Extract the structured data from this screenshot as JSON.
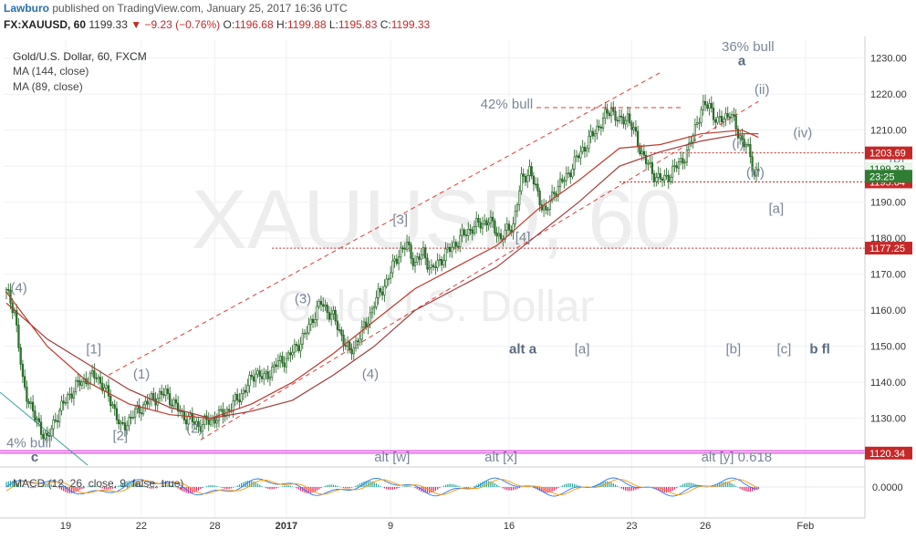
{
  "header": {
    "author": "Lawburo",
    "published_text": "published on TradingView.com, January 25, 2017 16:36 UTC",
    "symbol": "FX:XAUUSD, 60",
    "last": "1199.33",
    "change": "▼ −9.23 (−0.76%)",
    "open_label": "O:",
    "open": "1196.68",
    "high_label": "H:",
    "high": "1199.88",
    "low_label": "L:",
    "low": "1195.83",
    "close_label": "C:",
    "close": "1199.33"
  },
  "legend": {
    "title": "Gold/U.S. Dollar, 60, FXCM",
    "ma1": "MA (144, close)",
    "ma2": "MA (89, close)"
  },
  "watermark": {
    "line1": "XAUUSD, 60",
    "line2": "Gold/U.S. Dollar"
  },
  "macd": {
    "label": "MACD (12, 26, close, 9, false, true)",
    "axis_tick": "0.0000"
  },
  "colors": {
    "candle": "#2a7a2a",
    "ma_144": "#a33a3a",
    "ma_89": "#c0392b",
    "channel": "#e53935",
    "support_line": "#c62828",
    "magenta_level": "#d81bd8",
    "annotation": "#7a8699",
    "green_diagonal": "#3b9e9e",
    "macd_line": "#2979ff",
    "signal_line": "#ff9800",
    "hist_positive": "#26a69a",
    "hist_negative": "#e91e63"
  },
  "chart_data": {
    "type": "candlestick",
    "x_ticks": [
      "19",
      "22",
      "28",
      "2017",
      "9",
      "16",
      "23",
      "26",
      "Feb"
    ],
    "y_ticks": [
      1120,
      1130,
      1140,
      1150,
      1160,
      1170,
      1180,
      1190,
      1200,
      1210,
      1220,
      1230
    ],
    "ylim": [
      1117,
      1235
    ],
    "close_path": [
      [
        0,
        1165
      ],
      [
        4,
        1160
      ],
      [
        8,
        1140
      ],
      [
        14,
        1130
      ],
      [
        20,
        1124
      ],
      [
        24,
        1130
      ],
      [
        30,
        1136
      ],
      [
        36,
        1140
      ],
      [
        44,
        1142
      ],
      [
        52,
        1134
      ],
      [
        56,
        1127
      ],
      [
        62,
        1131
      ],
      [
        70,
        1135
      ],
      [
        78,
        1137
      ],
      [
        86,
        1131
      ],
      [
        94,
        1128
      ],
      [
        102,
        1130
      ],
      [
        108,
        1132
      ],
      [
        114,
        1136
      ],
      [
        118,
        1139
      ],
      [
        122,
        1143
      ],
      [
        126,
        1141
      ],
      [
        132,
        1145
      ],
      [
        138,
        1147
      ],
      [
        142,
        1150
      ],
      [
        146,
        1153
      ],
      [
        150,
        1158
      ],
      [
        154,
        1162
      ],
      [
        160,
        1158
      ],
      [
        164,
        1153
      ],
      [
        168,
        1148
      ],
      [
        172,
        1152
      ],
      [
        176,
        1156
      ],
      [
        180,
        1162
      ],
      [
        186,
        1168
      ],
      [
        192,
        1176
      ],
      [
        196,
        1178
      ],
      [
        200,
        1173
      ],
      [
        204,
        1176
      ],
      [
        208,
        1171
      ],
      [
        214,
        1175
      ],
      [
        222,
        1180
      ],
      [
        228,
        1183
      ],
      [
        236,
        1185
      ],
      [
        242,
        1180
      ],
      [
        248,
        1184
      ],
      [
        252,
        1196
      ],
      [
        256,
        1199
      ],
      [
        260,
        1192
      ],
      [
        264,
        1187
      ],
      [
        268,
        1193
      ],
      [
        274,
        1197
      ],
      [
        280,
        1203
      ],
      [
        286,
        1208
      ],
      [
        292,
        1213
      ],
      [
        296,
        1216
      ],
      [
        300,
        1212
      ],
      [
        304,
        1214
      ],
      [
        310,
        1205
      ],
      [
        316,
        1198
      ],
      [
        322,
        1196
      ],
      [
        326,
        1199
      ],
      [
        330,
        1201
      ],
      [
        334,
        1205
      ],
      [
        340,
        1216
      ],
      [
        344,
        1217
      ],
      [
        348,
        1212
      ],
      [
        354,
        1215
      ],
      [
        358,
        1209
      ],
      [
        362,
        1206
      ],
      [
        364,
        1202
      ],
      [
        366,
        1198
      ],
      [
        368,
        1199.33
      ]
    ],
    "ma_144": [
      [
        0,
        1162
      ],
      [
        20,
        1152
      ],
      [
        40,
        1145
      ],
      [
        60,
        1138
      ],
      [
        80,
        1133
      ],
      [
        100,
        1130
      ],
      [
        120,
        1132
      ],
      [
        140,
        1135
      ],
      [
        160,
        1142
      ],
      [
        180,
        1150
      ],
      [
        200,
        1160
      ],
      [
        220,
        1166
      ],
      [
        240,
        1172
      ],
      [
        260,
        1181
      ],
      [
        280,
        1190
      ],
      [
        300,
        1200
      ],
      [
        320,
        1204
      ],
      [
        340,
        1207
      ],
      [
        360,
        1209
      ],
      [
        368,
        1209
      ]
    ],
    "ma_89": [
      [
        0,
        1165
      ],
      [
        20,
        1150
      ],
      [
        40,
        1140
      ],
      [
        60,
        1134
      ],
      [
        80,
        1131
      ],
      [
        100,
        1130
      ],
      [
        120,
        1134
      ],
      [
        140,
        1140
      ],
      [
        160,
        1148
      ],
      [
        180,
        1157
      ],
      [
        200,
        1166
      ],
      [
        220,
        1172
      ],
      [
        240,
        1178
      ],
      [
        260,
        1188
      ],
      [
        280,
        1196
      ],
      [
        300,
        1205
      ],
      [
        320,
        1206
      ],
      [
        340,
        1209
      ],
      [
        360,
        1210
      ],
      [
        368,
        1208
      ]
    ],
    "channel_upper": [
      [
        50,
        1142
      ],
      [
        320,
        1226
      ]
    ],
    "channel_lower": [
      [
        95,
        1124
      ],
      [
        368,
        1218
      ]
    ],
    "hlines": [
      {
        "y": 1203.69,
        "x_from": 315,
        "style": "dotted",
        "price_tag": "1203.69",
        "tag_bg": "#c62828"
      },
      {
        "y": 1195.64,
        "x_from": 300,
        "style": "dotted",
        "price_tag": "1195.64",
        "tag_bg": "#c62828"
      },
      {
        "y": 1177.25,
        "x_from": 130,
        "style": "dotted",
        "price_tag": "1177.25",
        "tag_bg": "#c62828"
      },
      {
        "y": 1120.34,
        "x_from": 0,
        "style": "solid",
        "price_tag": "1120.34",
        "tag_bg": "#c62828"
      },
      {
        "y": 1121,
        "x_from": 0,
        "style": "solid",
        "price_tag": "",
        "tag_bg": ""
      }
    ],
    "price_tags": [
      {
        "label": "1199.33",
        "y": 1199.33,
        "bg": "#e8f5e9",
        "fg": "#1b5e20"
      },
      {
        "label": "23:25",
        "y": 1197.2,
        "bg": "#2e7d32",
        "fg": "#ffffff"
      }
    ],
    "annotations": [
      {
        "text": "(4)",
        "x": 2,
        "y": 1165
      },
      {
        "text": "[1]",
        "x": 39,
        "y": 1148
      },
      {
        "text": "(1)",
        "x": 62,
        "y": 1141
      },
      {
        "text": "4% bull",
        "x": 0,
        "y": 1122
      },
      {
        "text": "c",
        "x": 12,
        "y": 1118,
        "bold": true,
        "dark": true
      },
      {
        "text": "[2]",
        "x": 52,
        "y": 1124
      },
      {
        "text": "(2)",
        "x": 88,
        "y": 1126
      },
      {
        "text": "(3)",
        "x": 141,
        "y": 1162
      },
      {
        "text": "(4)",
        "x": 174,
        "y": 1141
      },
      {
        "text": "[3]",
        "x": 189,
        "y": 1184
      },
      {
        "text": "[4]",
        "x": 249,
        "y": 1179
      },
      {
        "text": "42% bull",
        "x": 232,
        "y": 1216
      },
      {
        "text": "alt a",
        "x": 246,
        "y": 1148,
        "bold": true,
        "dark": true
      },
      {
        "text": "[a]",
        "x": 278,
        "y": 1148
      },
      {
        "text": "36% bull",
        "x": 350,
        "y": 1232
      },
      {
        "text": "a",
        "x": 358,
        "y": 1228,
        "bold": true,
        "dark": true
      },
      {
        "text": "(ii)",
        "x": 366,
        "y": 1220
      },
      {
        "text": "(i)",
        "x": 355,
        "y": 1205
      },
      {
        "text": "(iv)",
        "x": 385,
        "y": 1208
      },
      {
        "text": "(iii)",
        "x": 362,
        "y": 1197
      },
      {
        "text": "[b]",
        "x": 432,
        "y": 1201
      },
      {
        "text": "[a]",
        "x": 373,
        "y": 1187
      },
      {
        "text": "b",
        "x": 465,
        "y": 1177,
        "bold": true,
        "dark": true
      },
      {
        "text": "[b]",
        "x": 352,
        "y": 1148
      },
      {
        "text": "[c]",
        "x": 377,
        "y": 1148
      },
      {
        "text": "b fl",
        "x": 393,
        "y": 1148,
        "bold": true,
        "dark": true
      },
      {
        "text": "alt [w]",
        "x": 180,
        "y": 1118
      },
      {
        "text": "alt [x]",
        "x": 234,
        "y": 1118
      },
      {
        "text": "alt [y] 0.618",
        "x": 340,
        "y": 1118
      }
    ]
  }
}
